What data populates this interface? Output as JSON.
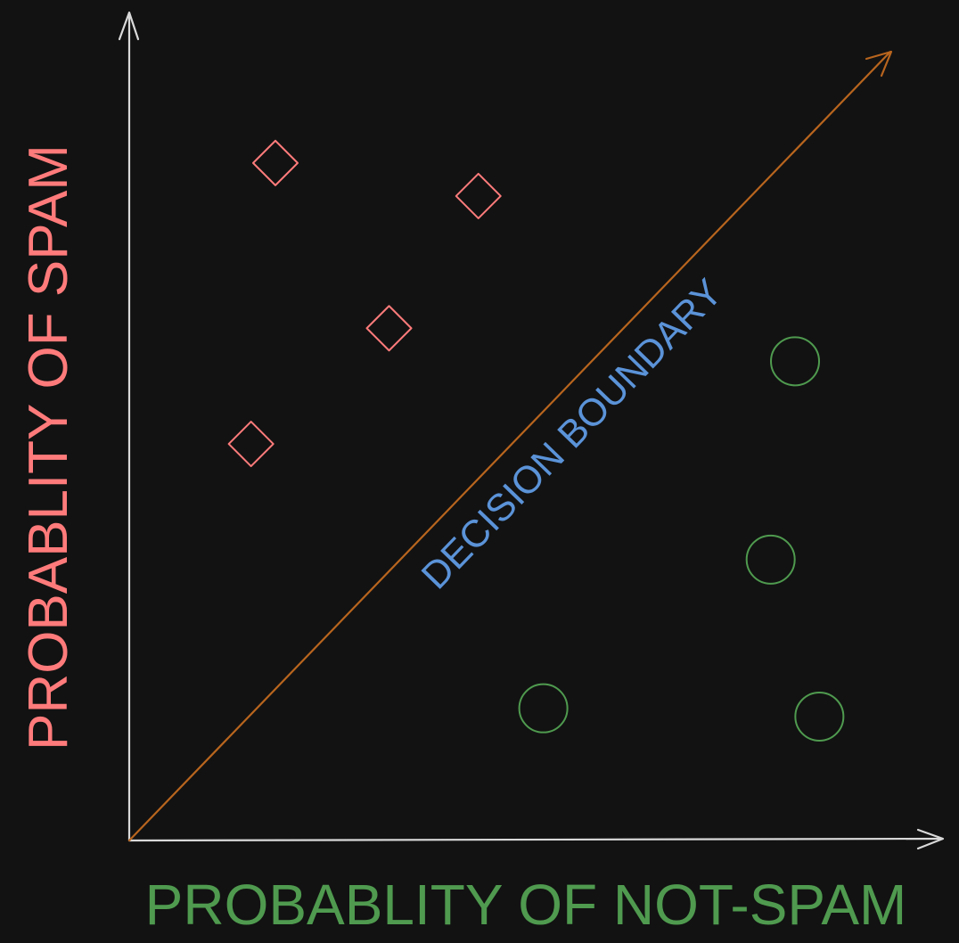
{
  "colors": {
    "background": "#121212",
    "axis": "#d9d9d9",
    "spam": "#ff7b7b",
    "not_spam": "#4f9a4f",
    "boundary_line": "#b8651e",
    "boundary_label": "#5b93d8"
  },
  "labels": {
    "y_axis": "PROBABLITY OF SPAM",
    "x_axis": "PROBABLITY OF NOT-SPAM",
    "boundary": "DECISION BOUNDARY"
  },
  "chart_data": {
    "type": "scatter",
    "xlabel": "PROBABLITY OF NOT-SPAM",
    "ylabel": "PROBABLITY OF SPAM",
    "xlim": [
      0,
      1
    ],
    "ylim": [
      0,
      1
    ],
    "series": [
      {
        "name": "spam",
        "marker": "diamond",
        "points": [
          [
            0.18,
            0.82
          ],
          [
            0.43,
            0.78
          ],
          [
            0.32,
            0.62
          ],
          [
            0.15,
            0.48
          ]
        ]
      },
      {
        "name": "not-spam",
        "marker": "circle",
        "points": [
          [
            0.82,
            0.58
          ],
          [
            0.79,
            0.34
          ],
          [
            0.51,
            0.16
          ],
          [
            0.85,
            0.15
          ]
        ]
      }
    ],
    "decision_boundary": {
      "from": [
        0,
        0
      ],
      "to": [
        1,
        1
      ]
    }
  }
}
